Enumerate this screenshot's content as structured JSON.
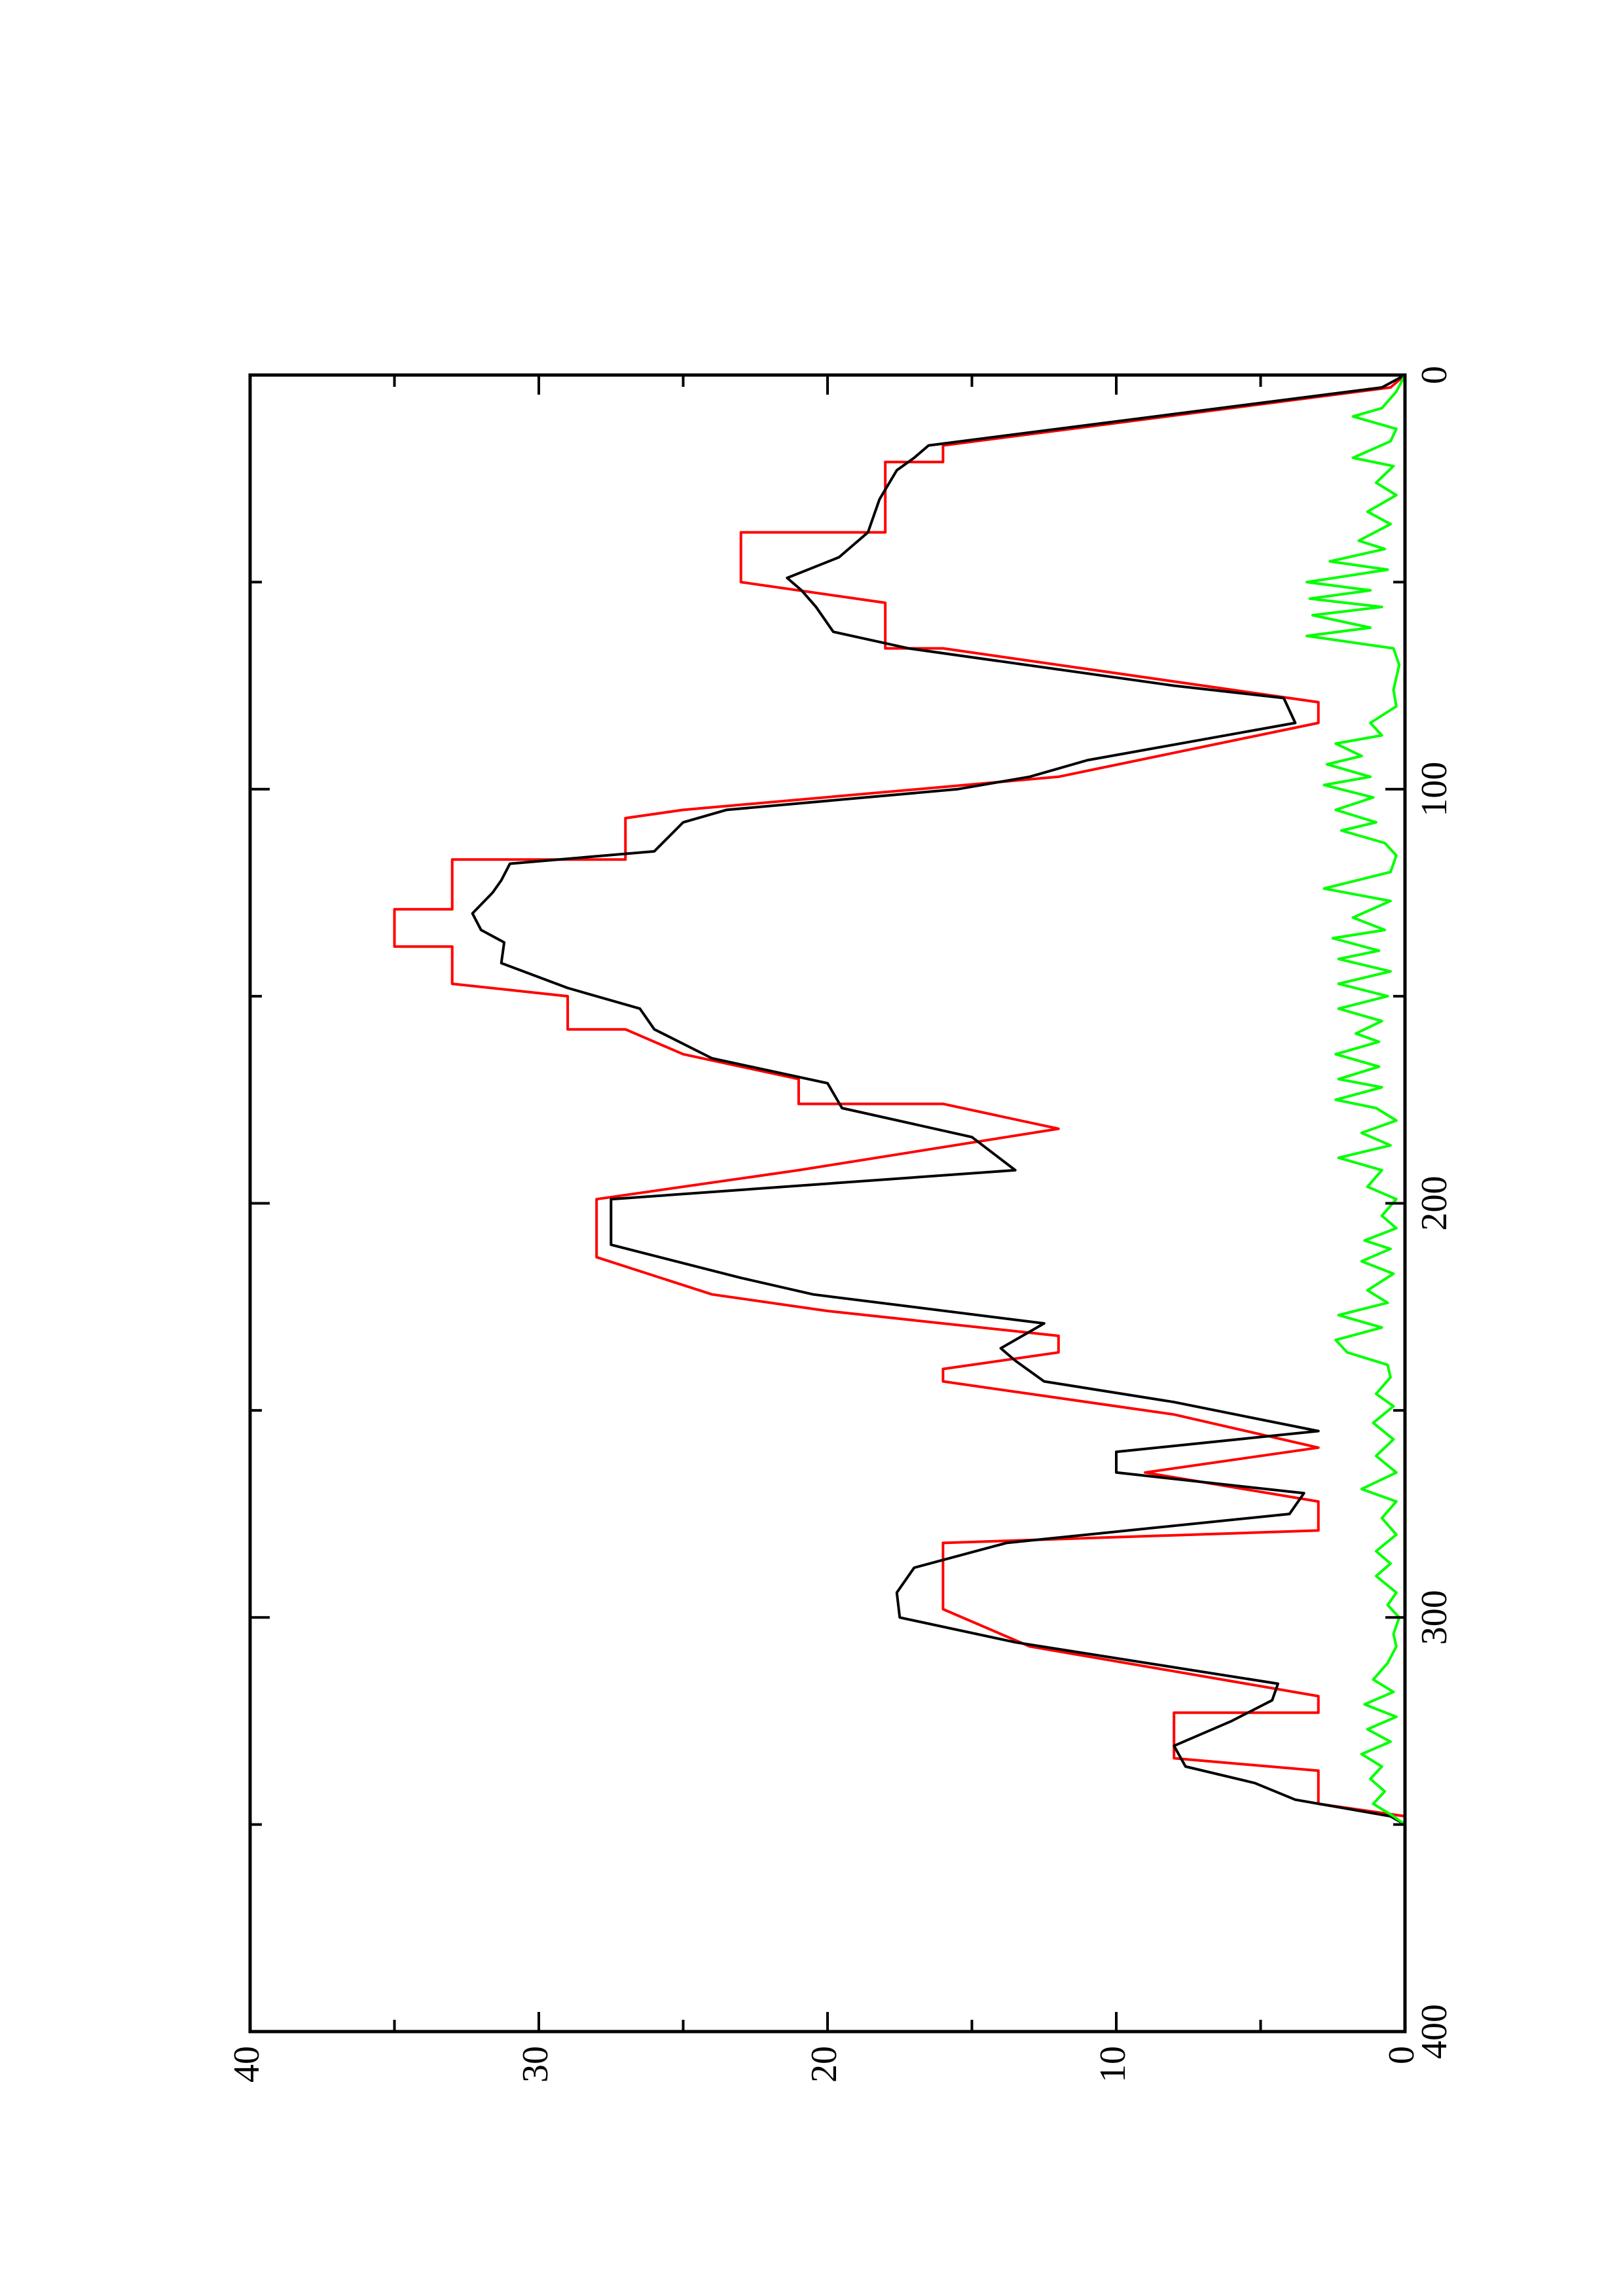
{
  "chart_data": {
    "type": "line",
    "title": "",
    "xlabel": "",
    "ylabel": "",
    "xlim": [
      0,
      400
    ],
    "ylim": [
      0,
      40
    ],
    "x_ticks": [
      0,
      100,
      200,
      300,
      400
    ],
    "y_ticks": [
      0,
      10,
      20,
      30,
      40
    ],
    "x_minor_ticks": [
      50,
      150,
      250,
      350
    ],
    "y_minor_ticks": [
      5,
      15,
      25,
      35
    ],
    "orientation": "rotated 90 degrees counter-clockwise on the page",
    "grid": false,
    "legend": "none",
    "series": [
      {
        "color": "#ff0000",
        "style": "step",
        "points": [
          [
            0,
            0
          ],
          [
            3,
            0.5
          ],
          [
            17,
            16
          ],
          [
            21,
            16
          ],
          [
            21,
            18
          ],
          [
            38,
            18
          ],
          [
            38,
            23
          ],
          [
            50,
            23
          ],
          [
            55,
            18
          ],
          [
            66,
            18
          ],
          [
            66,
            16
          ],
          [
            79,
            3
          ],
          [
            84,
            3
          ],
          [
            84,
            3
          ],
          [
            97,
            12
          ],
          [
            105,
            25
          ],
          [
            107,
            27
          ],
          [
            117,
            27
          ],
          [
            117,
            33
          ],
          [
            129,
            33
          ],
          [
            129,
            35
          ],
          [
            138,
            35
          ],
          [
            138,
            33
          ],
          [
            147,
            33
          ],
          [
            150,
            29
          ],
          [
            158,
            29
          ],
          [
            158,
            27
          ],
          [
            164,
            25
          ],
          [
            170,
            21
          ],
          [
            176,
            21
          ],
          [
            176,
            16
          ],
          [
            182,
            12
          ],
          [
            192,
            21
          ],
          [
            199,
            28
          ],
          [
            213,
            28
          ],
          [
            222,
            24
          ],
          [
            226,
            20
          ],
          [
            232,
            12
          ],
          [
            236,
            12
          ],
          [
            240,
            16
          ],
          [
            243,
            16
          ],
          [
            251,
            8
          ],
          [
            259,
            3
          ],
          [
            265,
            9
          ],
          [
            272,
            3
          ],
          [
            279,
            3
          ],
          [
            282,
            16
          ],
          [
            298,
            16
          ],
          [
            307,
            13
          ],
          [
            319,
            3
          ],
          [
            323,
            3
          ],
          [
            323,
            8
          ],
          [
            334,
            8
          ],
          [
            337,
            3
          ],
          [
            345,
            3
          ],
          [
            348,
            0
          ],
          [
            350,
            0
          ]
        ]
      },
      {
        "color": "#000000",
        "style": "line",
        "points": [
          [
            0,
            0
          ],
          [
            3,
            0.8
          ],
          [
            17,
            16.5
          ],
          [
            20,
            17
          ],
          [
            23,
            17.6
          ],
          [
            30,
            18.2
          ],
          [
            38,
            18.6
          ],
          [
            44,
            19.6
          ],
          [
            49,
            21.4
          ],
          [
            52,
            20.9
          ],
          [
            56,
            20.4
          ],
          [
            62,
            19.8
          ],
          [
            66,
            17.2
          ],
          [
            75,
            8
          ],
          [
            78,
            4.2
          ],
          [
            84,
            3.8
          ],
          [
            93,
            11
          ],
          [
            97,
            13
          ],
          [
            100,
            15.5
          ],
          [
            105,
            23.5
          ],
          [
            108,
            25
          ],
          [
            115,
            26
          ],
          [
            118,
            31
          ],
          [
            122,
            31.3
          ],
          [
            125,
            31.6
          ],
          [
            130,
            32.3
          ],
          [
            134,
            32
          ],
          [
            137,
            31.2
          ],
          [
            142,
            31.3
          ],
          [
            148,
            29
          ],
          [
            153,
            26.5
          ],
          [
            158,
            26
          ],
          [
            165,
            24
          ],
          [
            171,
            20
          ],
          [
            177,
            19.5
          ],
          [
            184,
            15
          ],
          [
            192,
            13.5
          ],
          [
            199,
            27.5
          ],
          [
            210,
            27.5
          ],
          [
            218,
            23
          ],
          [
            222,
            20.5
          ],
          [
            229,
            12.5
          ],
          [
            235,
            14
          ],
          [
            238,
            13.5
          ],
          [
            243,
            12.5
          ],
          [
            248,
            8
          ],
          [
            255,
            3
          ],
          [
            260,
            10
          ],
          [
            265,
            10
          ],
          [
            270,
            3.5
          ],
          [
            275,
            4
          ],
          [
            282,
            13.8
          ],
          [
            288,
            17
          ],
          [
            294,
            17.6
          ],
          [
            300,
            17.5
          ],
          [
            306,
            13.5
          ],
          [
            316,
            4.4
          ],
          [
            320,
            4.6
          ],
          [
            325,
            6
          ],
          [
            331,
            8
          ],
          [
            336,
            7.6
          ],
          [
            340,
            5.2
          ],
          [
            344,
            3.8
          ],
          [
            348,
            0.5
          ],
          [
            350,
            0
          ]
        ]
      },
      {
        "color": "#00ff00",
        "style": "line",
        "points": [
          [
            0,
            0
          ],
          [
            4,
            0.3
          ],
          [
            8,
            0.8
          ],
          [
            10,
            1.8
          ],
          [
            13,
            0.3
          ],
          [
            16,
            0.5
          ],
          [
            20,
            1.8
          ],
          [
            22,
            0.4
          ],
          [
            26,
            1.0
          ],
          [
            29,
            0.3
          ],
          [
            33,
            1.3
          ],
          [
            36,
            0.5
          ],
          [
            40,
            1.6
          ],
          [
            42,
            0.7
          ],
          [
            45,
            2.6
          ],
          [
            47,
            0.6
          ],
          [
            50,
            3.4
          ],
          [
            52,
            1.2
          ],
          [
            54,
            3.3
          ],
          [
            56,
            0.8
          ],
          [
            58,
            3.2
          ],
          [
            61,
            1.2
          ],
          [
            63,
            3.4
          ],
          [
            66,
            0.4
          ],
          [
            70,
            0.2
          ],
          [
            76,
            0.4
          ],
          [
            80,
            0.3
          ],
          [
            84,
            1.2
          ],
          [
            87,
            0.8
          ],
          [
            89,
            2.4
          ],
          [
            92,
            1.5
          ],
          [
            94,
            2.7
          ],
          [
            97,
            1.2
          ],
          [
            99,
            2.8
          ],
          [
            102,
            1.1
          ],
          [
            105,
            2.4
          ],
          [
            108,
            1.0
          ],
          [
            110,
            2.2
          ],
          [
            113,
            0.7
          ],
          [
            116,
            0.3
          ],
          [
            120,
            0.5
          ],
          [
            124,
            2.8
          ],
          [
            127,
            0.5
          ],
          [
            131,
            1.8
          ],
          [
            134,
            0.7
          ],
          [
            136,
            2.5
          ],
          [
            139,
            0.9
          ],
          [
            141,
            2.3
          ],
          [
            144,
            0.5
          ],
          [
            147,
            2.3
          ],
          [
            150,
            0.6
          ],
          [
            153,
            2.3
          ],
          [
            156,
            0.8
          ],
          [
            159,
            1.7
          ],
          [
            161,
            0.9
          ],
          [
            164,
            2.4
          ],
          [
            167,
            0.9
          ],
          [
            170,
            2.3
          ],
          [
            172,
            0.8
          ],
          [
            175,
            2.4
          ],
          [
            177,
            1.0
          ],
          [
            180,
            0.3
          ],
          [
            183,
            1.5
          ],
          [
            186,
            0.5
          ],
          [
            189,
            2.3
          ],
          [
            192,
            0.8
          ],
          [
            196,
            1.3
          ],
          [
            199,
            0.3
          ],
          [
            203,
            0.8
          ],
          [
            206,
            0.3
          ],
          [
            209,
            1.4
          ],
          [
            211,
            0.5
          ],
          [
            214,
            1.5
          ],
          [
            217,
            0.4
          ],
          [
            221,
            1.3
          ],
          [
            224,
            0.6
          ],
          [
            227,
            2.3
          ],
          [
            230,
            0.8
          ],
          [
            233,
            2.4
          ],
          [
            236,
            2.0
          ],
          [
            239,
            0.6
          ],
          [
            242,
            0.5
          ],
          [
            246,
            1.0
          ],
          [
            249,
            0.4
          ],
          [
            253,
            1.1
          ],
          [
            257,
            0.4
          ],
          [
            261,
            1.0
          ],
          [
            265,
            0.3
          ],
          [
            269,
            1.5
          ],
          [
            272,
            0.3
          ],
          [
            276,
            0.8
          ],
          [
            280,
            0.3
          ],
          [
            284,
            1.0
          ],
          [
            287,
            0.5
          ],
          [
            290,
            1.0
          ],
          [
            294,
            0.3
          ],
          [
            297,
            0.6
          ],
          [
            300,
            0.2
          ],
          [
            304,
            0.4
          ],
          [
            307,
            0.3
          ],
          [
            311,
            0.6
          ],
          [
            315,
            1.1
          ],
          [
            318,
            0.4
          ],
          [
            321,
            1.4
          ],
          [
            324,
            0.3
          ],
          [
            327,
            1.3
          ],
          [
            330,
            0.5
          ],
          [
            333,
            1.5
          ],
          [
            336,
            0.8
          ],
          [
            339,
            1.2
          ],
          [
            342,
            0.7
          ],
          [
            345,
            1.1
          ],
          [
            348,
            0.4
          ],
          [
            350,
            0
          ]
        ]
      }
    ]
  }
}
